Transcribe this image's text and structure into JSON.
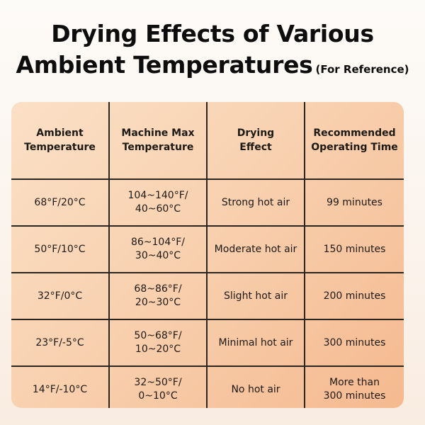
{
  "title": {
    "line1": "Drying Effects of Various",
    "line2": "Ambient Temperatures",
    "note": "(For Reference)"
  },
  "table": {
    "headers": [
      [
        "Ambient",
        "Temperature"
      ],
      [
        "Machine Max",
        "Temperature"
      ],
      [
        "Drying",
        "Effect"
      ],
      [
        "Recommended",
        "Operating Time"
      ]
    ],
    "rows": [
      {
        "ambient": "68°F/20°C",
        "machine_max": [
          "104~140°F/",
          "40~60°C"
        ],
        "effect": "Strong hot air",
        "time": [
          "99 minutes"
        ]
      },
      {
        "ambient": "50°F/10°C",
        "machine_max": [
          "86~104°F/",
          "30~40°C"
        ],
        "effect": "Moderate hot air",
        "time": [
          "150 minutes"
        ]
      },
      {
        "ambient": "32°F/0°C",
        "machine_max": [
          "68~86°F/",
          "20~30°C"
        ],
        "effect": "Slight hot air",
        "time": [
          "200 minutes"
        ]
      },
      {
        "ambient": "23°F/-5°C",
        "machine_max": [
          "50~68°F/",
          "10~20°C"
        ],
        "effect": "Minimal hot air",
        "time": [
          "300 minutes"
        ]
      },
      {
        "ambient": "14°F/-10°C",
        "machine_max": [
          "32~50°F/",
          "0~10°C"
        ],
        "effect": "No hot air",
        "time": [
          "More than",
          "300 minutes"
        ]
      }
    ]
  },
  "colors": {
    "title_text": "#0d0d0d",
    "table_light": "#fbe0c6",
    "table_dark": "#f5b98f",
    "grid_lines": "#2b2521"
  }
}
